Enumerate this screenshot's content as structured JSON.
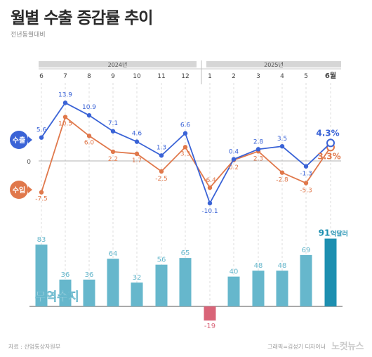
{
  "header": {
    "title": "월별 수출 증감률 추이",
    "subtitle": "전년동월대비"
  },
  "footer": {
    "source": "자료 : 산업통상자원부",
    "credit": "그래픽=김성기 디자이너",
    "brand": "노컷뉴스"
  },
  "colors": {
    "export": "#3a63d6",
    "import": "#e0784b",
    "bar": "#66b7cc",
    "bar_negative": "#d96478",
    "bar_highlight": "#1d8fb0",
    "timeline": "#d6d6d6"
  },
  "chart_data": [
    {
      "type": "line",
      "years": [
        {
          "label": "2024년",
          "months": [
            "6",
            "7",
            "8",
            "9",
            "10",
            "11",
            "12"
          ]
        },
        {
          "label": "2025년",
          "months": [
            "1",
            "2",
            "3",
            "4",
            "5",
            "6월"
          ]
        }
      ],
      "categories": [
        "6",
        "7",
        "8",
        "9",
        "10",
        "11",
        "12",
        "1",
        "2",
        "3",
        "4",
        "5",
        "6월"
      ],
      "zero_label": "0",
      "series": [
        {
          "name": "수출",
          "values": [
            5.6,
            13.9,
            10.9,
            7.1,
            4.6,
            1.3,
            6.6,
            -10.1,
            0.4,
            2.8,
            3.5,
            -1.3,
            4.3
          ],
          "labels": [
            "5.6",
            "13.9",
            "10.9",
            "7.1",
            "4.6",
            "1.3",
            "6.6",
            "-10.1",
            "0.4",
            "2.8",
            "3.5",
            "-1.3",
            "4.3%"
          ]
        },
        {
          "name": "수입",
          "values": [
            -7.5,
            10.5,
            6.0,
            2.2,
            1.7,
            -2.5,
            3.3,
            -6.4,
            0.2,
            2.3,
            -2.8,
            -5.3,
            3.3
          ],
          "labels": [
            "-7.5",
            "10.5",
            "6.0",
            "2.2",
            "1.7",
            "-2.5",
            "3.3",
            "-6.4",
            "0.2",
            "2.3",
            "-2.8",
            "-5.3",
            "3.3%"
          ]
        }
      ]
    },
    {
      "type": "bar",
      "title": "무역수지",
      "categories": [
        "6",
        "7",
        "8",
        "9",
        "10",
        "11",
        "12",
        "1",
        "2",
        "3",
        "4",
        "5",
        "6월"
      ],
      "values": [
        83,
        36,
        36,
        64,
        32,
        56,
        65,
        -19,
        40,
        48,
        48,
        69,
        91
      ],
      "labels": [
        "83",
        "36",
        "36",
        "64",
        "32",
        "56",
        "65",
        "-19",
        "40",
        "48",
        "48",
        "69",
        "91"
      ],
      "last_unit": "억달러"
    }
  ]
}
